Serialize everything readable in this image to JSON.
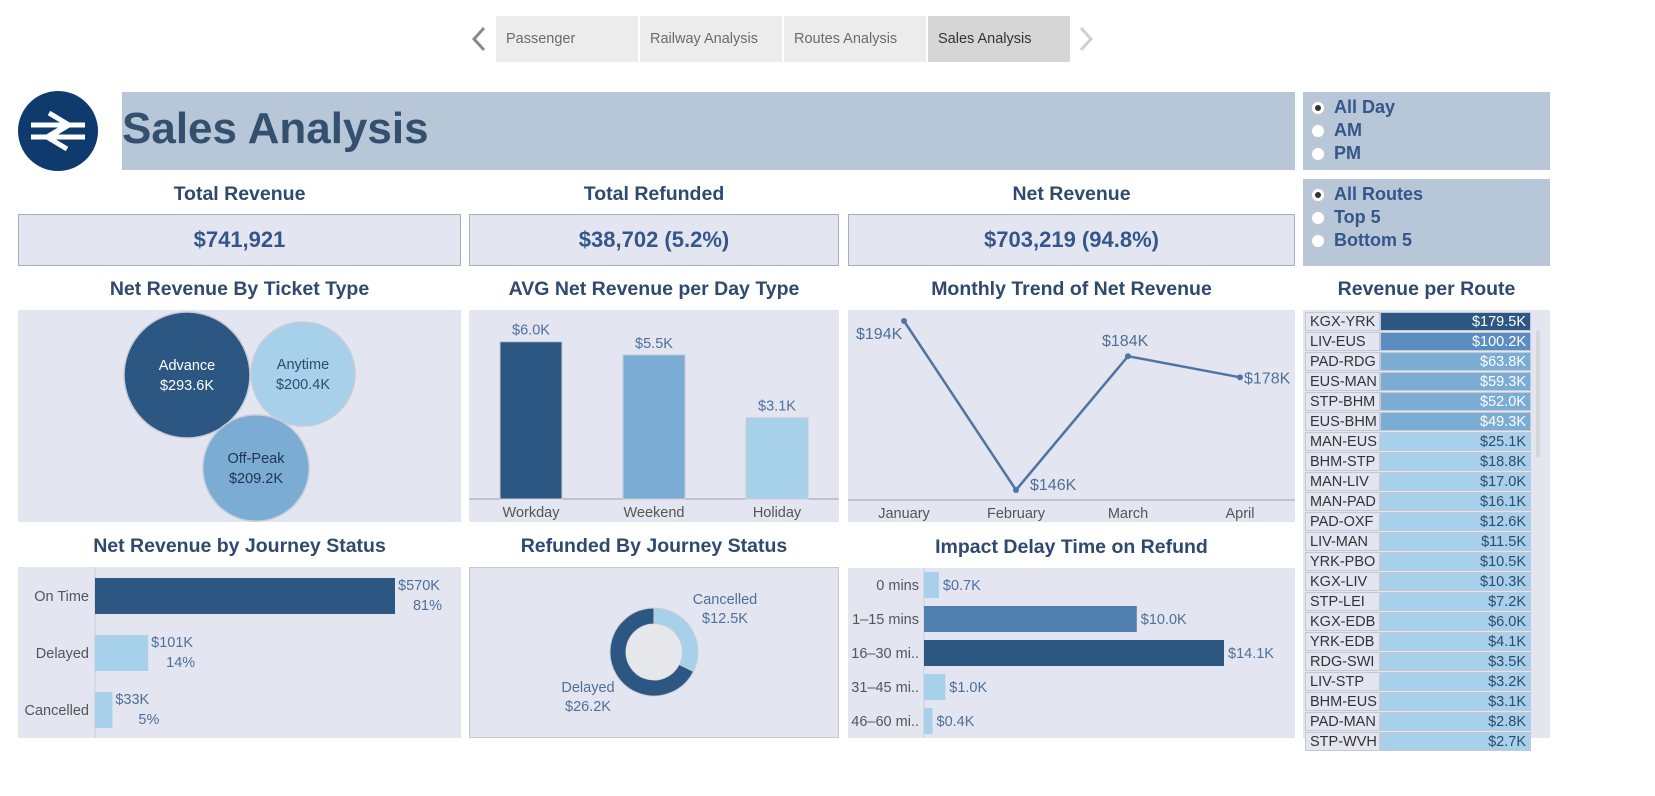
{
  "tabs": [
    "Passenger",
    "Railway Analysis",
    "Routes Analysis",
    "Sales Analysis"
  ],
  "active_tab": "Sales Analysis",
  "title": "Sales Analysis",
  "colors": {
    "dark": "#2b5782",
    "mid": "#4e7fae",
    "light": "#7bacd4",
    "pale": "#a7d0ea",
    "bg_panel": "#e3e6f0",
    "banner": "#b8c7d8"
  },
  "time_filter": {
    "options": [
      "All Day",
      "AM",
      "PM"
    ],
    "selected": "All Day"
  },
  "route_filter": {
    "options": [
      "All Routes",
      "Top 5",
      "Bottom 5"
    ],
    "selected": "All Routes"
  },
  "kpis": {
    "total_revenue": {
      "label": "Total Revenue",
      "value": "$741,921"
    },
    "total_refunded": {
      "label": "Total Refunded",
      "value": "$38,702 (5.2%)"
    },
    "net_revenue": {
      "label": "Net Revenue",
      "value": "$703,219 (94.8%)"
    }
  },
  "chart_data": [
    {
      "type": "bubble",
      "title": "Net Revenue By Ticket Type",
      "categories": [
        "Advance",
        "Anytime",
        "Off-Peak"
      ],
      "values": [
        293.6,
        200.4,
        209.2
      ],
      "labels": [
        "$293.6K",
        "$200.4K",
        "$209.2K"
      ]
    },
    {
      "type": "bar",
      "title": "AVG Net Revenue per Day Type",
      "categories": [
        "Workday",
        "Weekend",
        "Holiday"
      ],
      "values": [
        6.0,
        5.5,
        3.1
      ],
      "labels": [
        "$6.0K",
        "$5.5K",
        "$3.1K"
      ],
      "ylim": [
        0,
        6.6
      ]
    },
    {
      "type": "line",
      "title": "Monthly Trend of Net Revenue",
      "categories": [
        "January",
        "February",
        "March",
        "April"
      ],
      "values": [
        194,
        146,
        184,
        178
      ],
      "labels": [
        "$194K",
        "$146K",
        "$184K",
        "$178K"
      ],
      "ylim": [
        146,
        194
      ]
    },
    {
      "type": "bar",
      "orientation": "horizontal",
      "title": "Net Revenue by Journey Status",
      "categories": [
        "On Time",
        "Delayed",
        "Cancelled"
      ],
      "values": [
        570,
        101,
        33
      ],
      "labels": [
        "$570K",
        "$101K",
        "$33K"
      ],
      "percents": [
        "81%",
        "14%",
        "5%"
      ]
    },
    {
      "type": "pie",
      "title": "Refunded By Journey Status",
      "categories": [
        "Cancelled",
        "Delayed"
      ],
      "values": [
        12.5,
        26.2
      ],
      "labels": [
        "$12.5K",
        "$26.2K"
      ]
    },
    {
      "type": "bar",
      "orientation": "horizontal",
      "title": "Impact Delay Time on Refund",
      "categories": [
        "0 mins",
        "1–15 mins",
        "16–30 mi..",
        "31–45 mi..",
        "46–60 mi.."
      ],
      "values": [
        0.7,
        10.0,
        14.1,
        1.0,
        0.4
      ],
      "labels": [
        "$0.7K",
        "$10.0K",
        "$14.1K",
        "$1.0K",
        "$0.4K"
      ]
    },
    {
      "type": "table",
      "title": "Revenue per Route",
      "routes": [
        "KGX-YRK",
        "LIV-EUS",
        "PAD-RDG",
        "EUS-MAN",
        "STP-BHM",
        "EUS-BHM",
        "MAN-EUS",
        "BHM-STP",
        "MAN-LIV",
        "MAN-PAD",
        "PAD-OXF",
        "LIV-MAN",
        "YRK-PBO",
        "KGX-LIV",
        "STP-LEI",
        "KGX-EDB",
        "YRK-EDB",
        "RDG-SWI",
        "LIV-STP",
        "BHM-EUS",
        "PAD-MAN",
        "STP-WVH"
      ],
      "values": [
        179.5,
        100.2,
        63.8,
        59.3,
        52.0,
        49.3,
        25.1,
        18.8,
        17.0,
        16.1,
        12.6,
        11.5,
        10.5,
        10.3,
        7.2,
        6.0,
        4.1,
        3.5,
        3.2,
        3.1,
        2.8,
        2.7
      ],
      "labels": [
        "$179.5K",
        "$100.2K",
        "$63.8K",
        "$59.3K",
        "$52.0K",
        "$49.3K",
        "$25.1K",
        "$18.8K",
        "$17.0K",
        "$16.1K",
        "$12.6K",
        "$11.5K",
        "$10.5K",
        "$10.3K",
        "$7.2K",
        "$6.0K",
        "$4.1K",
        "$3.5K",
        "$3.2K",
        "$3.1K",
        "$2.8K",
        "$2.7K"
      ]
    }
  ]
}
